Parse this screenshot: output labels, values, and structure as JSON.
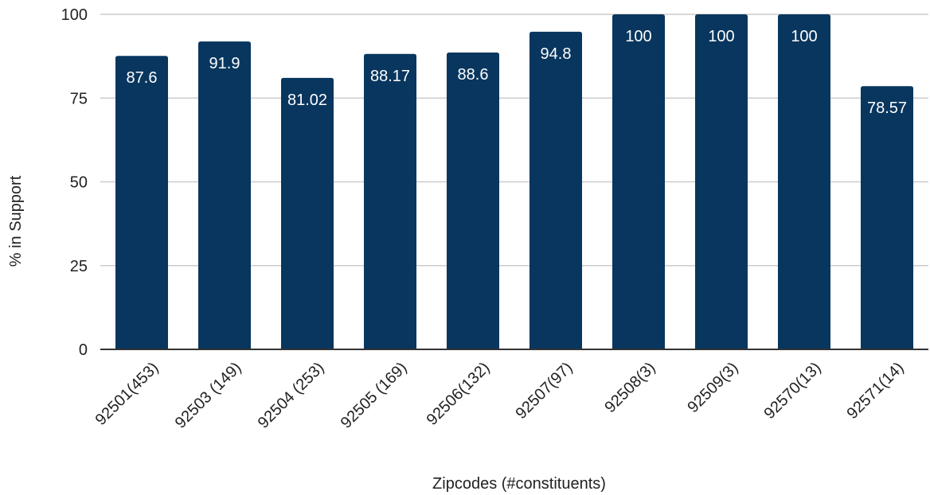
{
  "chart_data": {
    "type": "bar",
    "categories": [
      "92501(453)",
      "92503 (149)",
      "92504 (253)",
      "92505 (169)",
      "92506(132)",
      "92507(97)",
      "92508(3)",
      "92509(3)",
      "92570(13)",
      "92571(14)"
    ],
    "values": [
      87.6,
      91.9,
      81.02,
      88.17,
      88.6,
      94.8,
      100,
      100,
      100,
      78.57
    ],
    "data_labels": [
      "87.6",
      "91.9",
      "81.02",
      "88.17",
      "88.6",
      "94.8",
      "100",
      "100",
      "100",
      "78.57"
    ],
    "title": "",
    "xlabel": "Zipcodes (#constituents)",
    "ylabel": "% in Support",
    "ylim": [
      0,
      100
    ],
    "yticks": [
      0,
      25,
      50,
      75,
      100
    ],
    "grid": true,
    "legend": "none",
    "colors": {
      "bar": "#08365e",
      "grid": "#cccccc",
      "axis": "#333333",
      "label_inside": "#ffffff",
      "text": "#222222"
    }
  }
}
